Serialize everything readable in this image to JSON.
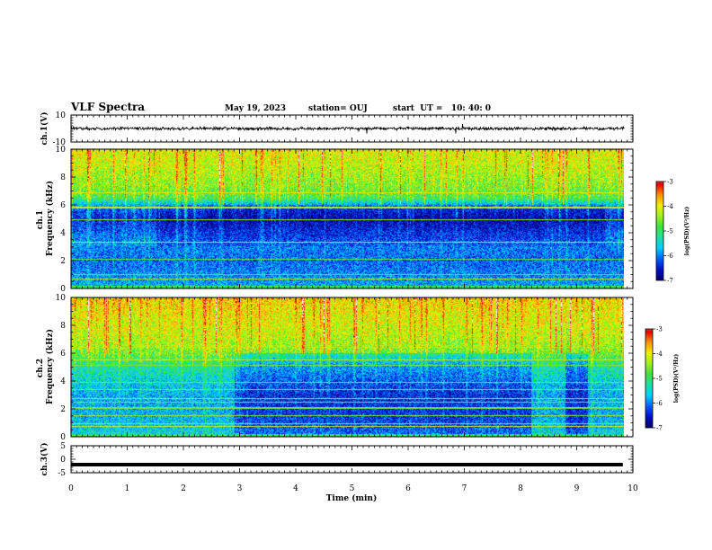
{
  "header": {
    "title": "VLF Spectra",
    "date": "May 19, 2023",
    "station": "station= OUJ",
    "start": "start  UT =   10: 40: 0"
  },
  "colors": {
    "colormap": [
      "#08006e",
      "#0010c8",
      "#0060ff",
      "#00d0ff",
      "#20e0a0",
      "#40e040",
      "#a0f020",
      "#f0f000",
      "#ff9000",
      "#e00000",
      "#ffffff"
    ]
  },
  "chart_data": [
    {
      "name": "ch1-waveform",
      "type": "line",
      "ylabel": "ch.1(V)",
      "ylim": [
        -10,
        10
      ],
      "yticks": [
        "10",
        "-10"
      ],
      "xlim": [
        0,
        10
      ],
      "baseline": 0,
      "amplitude_range": [
        -2,
        2
      ]
    },
    {
      "name": "ch1-spectrogram",
      "type": "heatmap",
      "ylabel": "ch.1\nFrequency (kHz)",
      "ylim": [
        0,
        10
      ],
      "yticks": [
        "0",
        "2",
        "4",
        "6",
        "8",
        "10"
      ],
      "xlim": [
        0,
        10
      ],
      "data_end_min": 9.85,
      "colorbar": {
        "label": "log(PSD)(V²/Hz)",
        "range": [
          -7,
          -3
        ],
        "ticks": [
          "-3",
          "-4",
          "-5",
          "-6",
          "-7"
        ]
      },
      "profile": [
        {
          "f": 0,
          "logpsd": -5.9
        },
        {
          "f": 1,
          "logpsd": -6.1
        },
        {
          "f": 2,
          "logpsd": -6.2
        },
        {
          "f": 3,
          "logpsd": -6.1
        },
        {
          "f": 4,
          "logpsd": -6.3
        },
        {
          "f": 5,
          "logpsd": -6.6
        },
        {
          "f": 5.8,
          "logpsd": -6.3
        },
        {
          "f": 6.5,
          "logpsd": -5.0
        },
        {
          "f": 7.5,
          "logpsd": -4.7
        },
        {
          "f": 8.5,
          "logpsd": -4.5
        },
        {
          "f": 10,
          "logpsd": -4.3
        }
      ]
    },
    {
      "name": "ch2-spectrogram",
      "type": "heatmap",
      "ylabel": "ch.2\nFrequency (kHz)",
      "ylim": [
        0,
        10
      ],
      "yticks": [
        "0",
        "2",
        "4",
        "6",
        "8",
        "10"
      ],
      "xlim": [
        0,
        10
      ],
      "data_end_min": 9.85,
      "colorbar": {
        "label": "log(PSD)(V²/Hz)",
        "range": [
          -7,
          -3
        ],
        "ticks": [
          "-3",
          "-4",
          "-5",
          "-6",
          "-7"
        ]
      },
      "profile": [
        {
          "f": 0,
          "logpsd": -5.6
        },
        {
          "f": 1,
          "logpsd": -5.8
        },
        {
          "f": 2,
          "logpsd": -5.9
        },
        {
          "f": 3,
          "logpsd": -5.9
        },
        {
          "f": 4,
          "logpsd": -5.7
        },
        {
          "f": 5,
          "logpsd": -5.4
        },
        {
          "f": 6,
          "logpsd": -4.8
        },
        {
          "f": 7,
          "logpsd": -4.5
        },
        {
          "f": 8.5,
          "logpsd": -4.3
        },
        {
          "f": 10,
          "logpsd": -4.1
        }
      ]
    },
    {
      "name": "ch3-waveform",
      "type": "line",
      "ylabel": "ch.3(V)",
      "ylim": [
        -5,
        5
      ],
      "yticks": [
        "5",
        "0",
        "-5"
      ],
      "xlim": [
        0,
        10
      ],
      "baseline": -2,
      "xlabel": "Time (min)",
      "xticks": [
        "0",
        "1",
        "2",
        "3",
        "4",
        "5",
        "6",
        "7",
        "8",
        "9",
        "10"
      ]
    }
  ]
}
